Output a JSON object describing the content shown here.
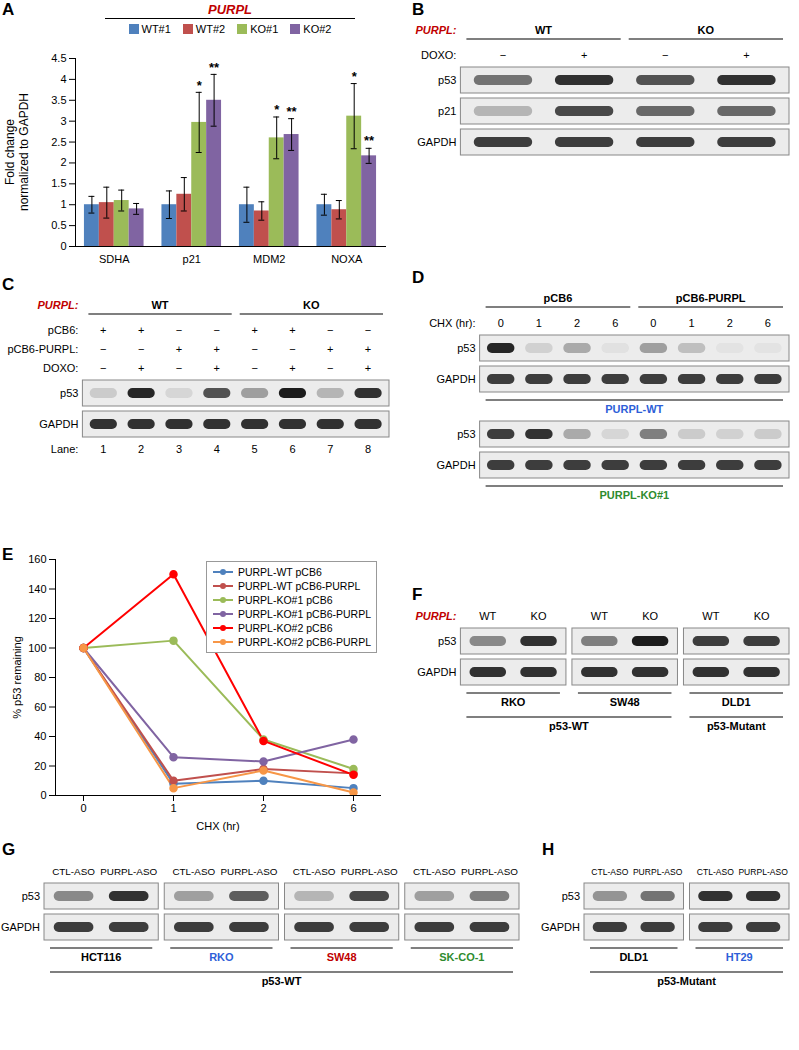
{
  "chart_data": [
    {
      "panel_label": "A",
      "type": "bar",
      "title": "PURPL",
      "y_label": "Fold change\nnormalized to GAPDH",
      "categories": [
        "SDHA",
        "p21",
        "MDM2",
        "NOXA"
      ],
      "series": [
        {
          "name": "WT#1",
          "color": "#4F81BD",
          "values": [
            1,
            1,
            1,
            1
          ],
          "errors": [
            0.2,
            0.33,
            0.42,
            0.25
          ]
        },
        {
          "name": "WT#2",
          "color": "#C0504D",
          "values": [
            1.05,
            1.25,
            0.85,
            0.88
          ],
          "errors": [
            0.37,
            0.4,
            0.22,
            0.22
          ]
        },
        {
          "name": "KO#1",
          "color": "#9BBB59",
          "values": [
            1.1,
            2.97,
            2.6,
            3.12
          ],
          "errors": [
            0.25,
            0.72,
            0.5,
            0.78
          ],
          "significance": [
            null,
            "*",
            "*",
            "*"
          ]
        },
        {
          "name": "KO#2",
          "color": "#8064A2",
          "values": [
            0.9,
            3.5,
            2.68,
            2.17
          ],
          "errors": [
            0.13,
            0.62,
            0.38,
            0.18
          ],
          "significance": [
            null,
            "**",
            "**",
            "**"
          ]
        }
      ],
      "ylim": [
        0,
        4.5
      ],
      "yticks": [
        0,
        0.5,
        1,
        1.5,
        2,
        2.5,
        3,
        3.5,
        4,
        4.5
      ],
      "grid": false,
      "legend": "top"
    },
    {
      "panel_label": "E",
      "type": "line",
      "x_label": "CHX (hr)",
      "y_label": "% p53 remaining",
      "categories": [
        "0",
        "1",
        "2",
        "6"
      ],
      "series": [
        {
          "name": "PURPL-WT pCB6",
          "color": "#4F81BD",
          "values": [
            100,
            8,
            10,
            5
          ]
        },
        {
          "name": "PURPL-WT pCB6-PURPL",
          "color": "#C0504D",
          "values": [
            100,
            10,
            18,
            15
          ]
        },
        {
          "name": "PURPL-KO#1 pCB6",
          "color": "#9BBB59",
          "values": [
            100,
            105,
            38,
            18
          ]
        },
        {
          "name": "PURPL-KO#1 pCB6-PURPL",
          "color": "#8064A2",
          "values": [
            100,
            26,
            23,
            38
          ]
        },
        {
          "name": "PURPL-KO#2 pCB6",
          "color": "#FF0000",
          "values": [
            100,
            150,
            37,
            14
          ]
        },
        {
          "name": "PURPL-KO#2 pCB6-PURPL",
          "color": "#F79646",
          "values": [
            100,
            5,
            17,
            2
          ]
        }
      ],
      "ylim": [
        0,
        160
      ],
      "yticks": [
        0,
        20,
        40,
        60,
        80,
        100,
        120,
        140,
        160
      ],
      "grid": false,
      "legend": "top right",
      "marker": "circle"
    }
  ],
  "blots": [
    {
      "panel_label": "B",
      "rows": [
        {
          "label": "PURPL:",
          "color": "#C00000",
          "groups": [
            {
              "text": "WT",
              "span": 2
            },
            {
              "text": "KO",
              "span": 2
            }
          ]
        },
        {
          "label": "DOXO:",
          "conditions": [
            "−",
            "+",
            "−",
            "+"
          ]
        },
        {
          "label": "p53",
          "bands": [
            [
              0.55,
              0.85,
              0.7,
              0.85
            ]
          ]
        },
        {
          "label": "p21",
          "bands": [
            [
              0.25,
              0.75,
              0.6,
              0.6
            ]
          ]
        },
        {
          "label": "GAPDH",
          "bands": [
            [
              0.8,
              0.8,
              0.8,
              0.8
            ]
          ]
        }
      ]
    },
    {
      "panel_label": "C",
      "rows": [
        {
          "label": "PURPL:",
          "color": "#C00000",
          "groups": [
            {
              "text": "WT",
              "span": 4
            },
            {
              "text": "KO",
              "span": 4
            }
          ]
        },
        {
          "label": "pCB6:",
          "conditions": [
            "+",
            "+",
            "−",
            "−",
            "+",
            "+",
            "−",
            "−"
          ]
        },
        {
          "label": "pCB6-PURPL:",
          "conditions": [
            "−",
            "−",
            "+",
            "+",
            "−",
            "−",
            "+",
            "+"
          ]
        },
        {
          "label": "DOXO:",
          "conditions": [
            "−",
            "+",
            "−",
            "+",
            "−",
            "+",
            "−",
            "+"
          ]
        },
        {
          "label": "p53",
          "bands": [
            [
              0.15,
              0.9,
              0.1,
              0.7,
              0.35,
              0.95,
              0.25,
              0.85
            ]
          ]
        },
        {
          "label": "GAPDH",
          "bands": [
            [
              0.85,
              0.85,
              0.85,
              0.85,
              0.85,
              0.85,
              0.85,
              0.85
            ]
          ]
        },
        {
          "label": "Lane:",
          "conditions": [
            "1",
            "2",
            "3",
            "4",
            "5",
            "6",
            "7",
            "8"
          ]
        }
      ]
    },
    {
      "panel_label": "D",
      "rows": [
        {
          "groups": [
            {
              "text": "pCB6",
              "span": 4
            },
            {
              "text": "pCB6-PURPL",
              "span": 4
            }
          ]
        },
        {
          "label": "CHX (hr):",
          "conditions": [
            "0",
            "1",
            "2",
            "6",
            "0",
            "1",
            "2",
            "6"
          ]
        },
        {
          "label": "p53",
          "bands": [
            [
              0.9,
              0.12,
              0.3,
              0.05,
              0.35,
              0.2,
              0.04,
              0.04
            ]
          ]
        },
        {
          "label": "GAPDH",
          "bands": [
            [
              0.8,
              0.8,
              0.8,
              0.8,
              0.8,
              0.8,
              0.8,
              0.8
            ]
          ]
        },
        {
          "groups": [
            {
              "text": "PURPL-WT",
              "span": 8,
              "color": "#2E5FD8"
            }
          ]
        },
        {
          "label": "p53",
          "bands": [
            [
              0.8,
              0.85,
              0.3,
              0.1,
              0.5,
              0.15,
              0.12,
              0.15
            ]
          ]
        },
        {
          "label": "GAPDH",
          "bands": [
            [
              0.8,
              0.8,
              0.8,
              0.8,
              0.8,
              0.8,
              0.8,
              0.8
            ]
          ]
        },
        {
          "groups": [
            {
              "text": "PURPL-KO#1",
              "span": 8,
              "color": "#2E8B2E"
            }
          ]
        }
      ]
    },
    {
      "panel_label": "F",
      "rows": [
        {
          "label": "PURPL:",
          "color": "#C00000",
          "conditions": [
            "WT",
            "KO",
            "WT",
            "KO",
            "WT",
            "KO"
          ]
        },
        {
          "label": "p53",
          "bands": [
            [
              0.45,
              0.85
            ],
            [
              0.5,
              0.95
            ],
            [
              0.8,
              0.8
            ]
          ]
        },
        {
          "label": "GAPDH",
          "bands": [
            [
              0.85,
              0.85
            ],
            [
              0.85,
              0.85
            ],
            [
              0.85,
              0.85
            ]
          ]
        },
        {
          "groups": [
            {
              "text": "RKO",
              "span": 2
            },
            {
              "text": "SW48",
              "span": 2
            },
            {
              "text": "DLD1",
              "span": 2
            }
          ]
        },
        {
          "groups": [
            {
              "text": "p53-WT",
              "span": 4
            },
            {
              "text": "p53-Mutant",
              "span": 2
            }
          ]
        }
      ]
    },
    {
      "panel_label": "G",
      "rows": [
        {
          "conditions": [
            "CTL-ASO",
            "PURPL-ASO",
            "CTL-ASO",
            "PURPL-ASO",
            "CTL-ASO",
            "PURPL-ASO",
            "CTL-ASO",
            "PURPL-ASO"
          ]
        },
        {
          "label": "p53",
          "bands": [
            [
              0.45,
              0.85
            ],
            [
              0.35,
              0.65
            ],
            [
              0.25,
              0.75
            ],
            [
              0.35,
              0.5
            ]
          ]
        },
        {
          "label": "GAPDH",
          "bands": [
            [
              0.8,
              0.8
            ],
            [
              0.8,
              0.8
            ],
            [
              0.8,
              0.8
            ],
            [
              0.8,
              0.8
            ]
          ]
        },
        {
          "groups": [
            {
              "text": "HCT116",
              "span": 2
            },
            {
              "text": "RKO",
              "span": 2,
              "color": "#2E5FD8"
            },
            {
              "text": "SW48",
              "span": 2,
              "color": "#C00000"
            },
            {
              "text": "SK-CO-1",
              "span": 2,
              "color": "#2E8B2E"
            }
          ]
        },
        {
          "groups": [
            {
              "text": "p53-WT",
              "span": 8
            }
          ]
        }
      ]
    },
    {
      "panel_label": "H",
      "rows": [
        {
          "conditions": [
            "CTL-ASO",
            "PURPL-ASO",
            "CTL-ASO",
            "PURPL-ASO"
          ]
        },
        {
          "label": "p53",
          "bands": [
            [
              0.4,
              0.55
            ],
            [
              0.85,
              0.85
            ]
          ]
        },
        {
          "label": "GAPDH",
          "bands": [
            [
              0.8,
              0.8
            ],
            [
              0.8,
              0.8
            ]
          ]
        },
        {
          "groups": [
            {
              "text": "DLD1",
              "span": 2
            },
            {
              "text": "HT29",
              "span": 2,
              "color": "#2E5FD8"
            }
          ]
        },
        {
          "groups": [
            {
              "text": "p53-Mutant",
              "span": 4
            }
          ]
        }
      ]
    }
  ]
}
